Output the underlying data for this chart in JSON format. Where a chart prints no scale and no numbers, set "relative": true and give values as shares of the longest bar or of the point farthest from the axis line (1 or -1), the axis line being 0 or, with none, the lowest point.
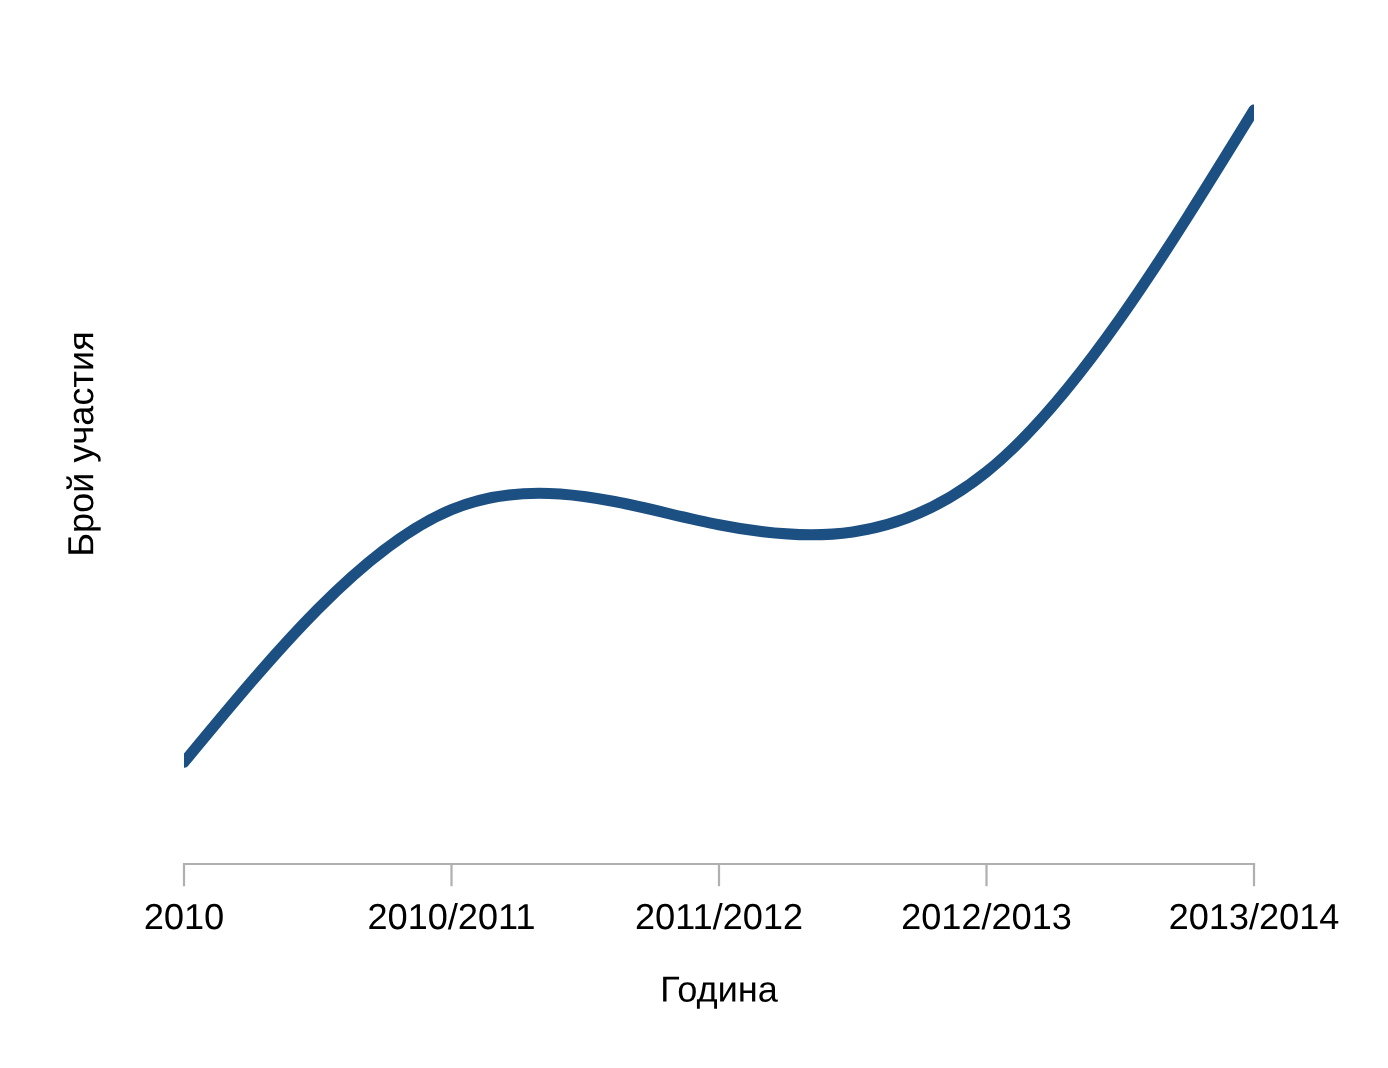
{
  "chart_data": {
    "type": "line",
    "xlabel": "Година",
    "ylabel": "Брой участия",
    "categories": [
      "2010",
      "2010/2011",
      "2011/2012",
      "2012/2013",
      "2013/2014"
    ],
    "relative": true,
    "series": [
      {
        "color": "#1c4f82",
        "values": [
          0.135,
          0.47,
          0.45,
          0.52,
          1.0
        ]
      }
    ]
  }
}
